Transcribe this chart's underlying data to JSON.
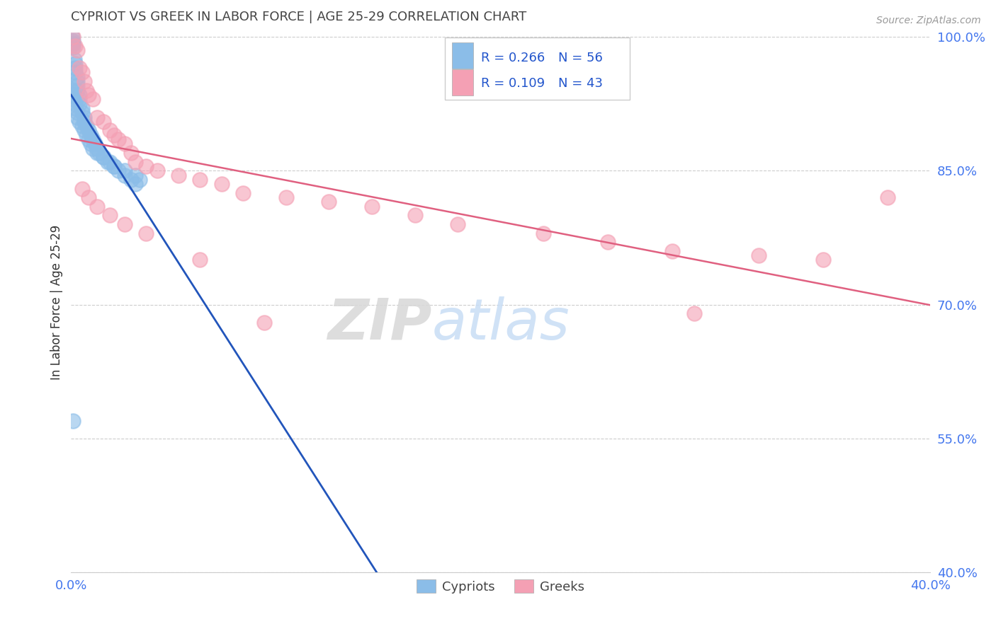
{
  "title": "CYPRIOT VS GREEK IN LABOR FORCE | AGE 25-29 CORRELATION CHART",
  "source_text": "Source: ZipAtlas.com",
  "ylabel": "In Labor Force | Age 25-29",
  "legend_cypriot": "Cypriots",
  "legend_greek": "Greeks",
  "R_cypriot": 0.266,
  "N_cypriot": 56,
  "R_greek": 0.109,
  "N_greek": 43,
  "xlim": [
    0.0,
    0.4
  ],
  "ylim": [
    0.4,
    1.005
  ],
  "ytick_vals": [
    0.4,
    0.55,
    0.7,
    0.85,
    1.0
  ],
  "ytick_labels": [
    "40.0%",
    "55.0%",
    "70.0%",
    "85.0%",
    "100.0%"
  ],
  "color_cypriot": "#8bbde8",
  "color_greek": "#f4a0b4",
  "trendline_cypriot": "#2255bb",
  "trendline_greek": "#e06080",
  "background_color": "#ffffff",
  "tick_color": "#4477ee",
  "cypriot_x": [
    0.0005,
    0.001,
    0.001,
    0.001,
    0.001,
    0.0015,
    0.002,
    0.002,
    0.002,
    0.003,
    0.003,
    0.003,
    0.003,
    0.004,
    0.004,
    0.004,
    0.005,
    0.005,
    0.006,
    0.006,
    0.007,
    0.008,
    0.009,
    0.01,
    0.011,
    0.012,
    0.013,
    0.015,
    0.017,
    0.02,
    0.022,
    0.025,
    0.028,
    0.03,
    0.0005,
    0.001,
    0.001,
    0.002,
    0.002,
    0.003,
    0.003,
    0.004,
    0.005,
    0.006,
    0.007,
    0.008,
    0.009,
    0.01,
    0.012,
    0.015,
    0.018,
    0.02,
    0.025,
    0.03,
    0.032,
    0.001
  ],
  "cypriot_y": [
    1.0,
    0.995,
    0.993,
    0.991,
    0.988,
    0.975,
    0.97,
    0.965,
    0.96,
    0.955,
    0.95,
    0.945,
    0.94,
    0.935,
    0.93,
    0.925,
    0.92,
    0.915,
    0.91,
    0.905,
    0.9,
    0.895,
    0.89,
    0.885,
    0.88,
    0.875,
    0.87,
    0.865,
    0.86,
    0.855,
    0.85,
    0.845,
    0.84,
    0.835,
    0.94,
    0.935,
    0.93,
    0.925,
    0.92,
    0.915,
    0.91,
    0.905,
    0.9,
    0.895,
    0.89,
    0.885,
    0.88,
    0.875,
    0.87,
    0.865,
    0.86,
    0.855,
    0.85,
    0.845,
    0.84,
    0.57
  ],
  "greek_x": [
    0.001,
    0.002,
    0.003,
    0.004,
    0.005,
    0.006,
    0.007,
    0.008,
    0.01,
    0.012,
    0.015,
    0.018,
    0.02,
    0.022,
    0.025,
    0.028,
    0.03,
    0.035,
    0.04,
    0.05,
    0.06,
    0.07,
    0.08,
    0.1,
    0.12,
    0.14,
    0.16,
    0.18,
    0.22,
    0.25,
    0.28,
    0.32,
    0.35,
    0.38,
    0.005,
    0.008,
    0.012,
    0.018,
    0.025,
    0.035,
    0.06,
    0.09,
    0.29
  ],
  "greek_y": [
    1.0,
    0.99,
    0.985,
    0.965,
    0.96,
    0.95,
    0.94,
    0.935,
    0.93,
    0.91,
    0.905,
    0.895,
    0.89,
    0.885,
    0.88,
    0.87,
    0.86,
    0.855,
    0.85,
    0.845,
    0.84,
    0.835,
    0.825,
    0.82,
    0.815,
    0.81,
    0.8,
    0.79,
    0.78,
    0.77,
    0.76,
    0.755,
    0.75,
    0.82,
    0.83,
    0.82,
    0.81,
    0.8,
    0.79,
    0.78,
    0.75,
    0.68,
    0.69
  ]
}
